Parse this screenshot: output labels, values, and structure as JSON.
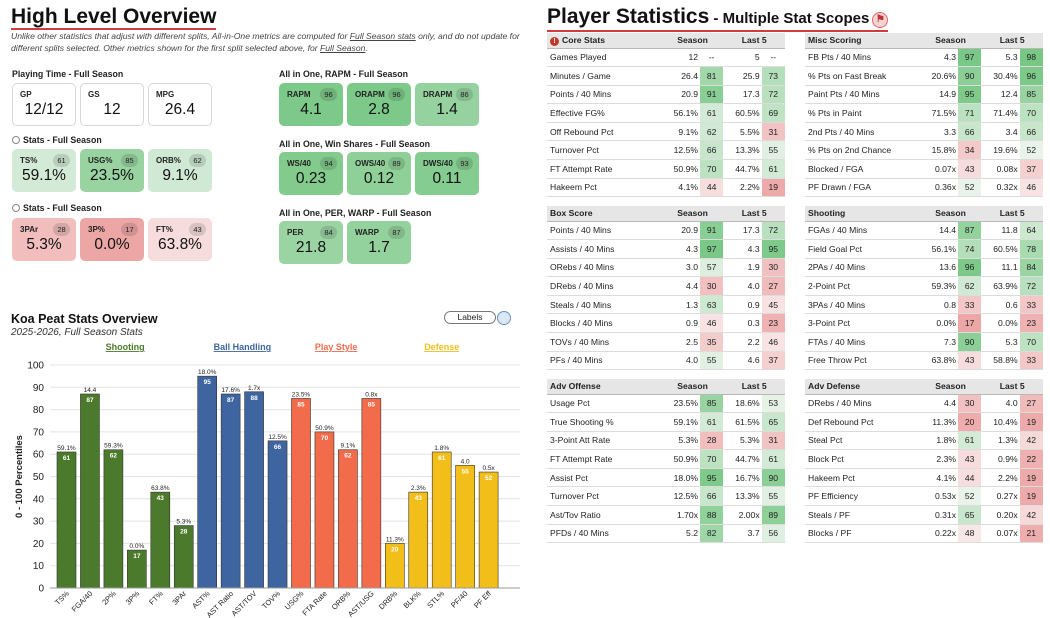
{
  "overview": {
    "title": "High Level Overview",
    "note_pre": "Unlike other statistics that adjust with different splits, All-in-One metrics are computed for ",
    "note_link1": "Full Season stats",
    "note_mid": " only, and do not update for different splits selected. Other metrics shown for the first split selected above, for ",
    "note_link2": "Full Season",
    "note_end": "."
  },
  "colors": {
    "accent_red": "#d23c3c",
    "shooting": "#4c7a2c",
    "ball_handling": "#3e65a0",
    "play_style": "#f26b4b",
    "defense": "#f2bf1a"
  },
  "groups": [
    {
      "label": "Playing Time - Full Season",
      "radio": false,
      "cards": [
        {
          "label": "GP",
          "value": "12/12",
          "pct": null
        },
        {
          "label": "GS",
          "value": "12",
          "pct": null
        },
        {
          "label": "MPG",
          "value": "26.4",
          "pct": null
        }
      ]
    },
    {
      "label": "Stats - Full Season",
      "radio": true,
      "cards": [
        {
          "label": "TS%",
          "value": "59.1%",
          "pct": 61
        },
        {
          "label": "USG%",
          "value": "23.5%",
          "pct": 85
        },
        {
          "label": "ORB%",
          "value": "9.1%",
          "pct": 62
        }
      ]
    },
    {
      "label": "Stats - Full Season",
      "radio": true,
      "cards": [
        {
          "label": "3PAr",
          "value": "5.3%",
          "pct": 28
        },
        {
          "label": "3P%",
          "value": "0.0%",
          "pct": 17
        },
        {
          "label": "FT%",
          "value": "63.8%",
          "pct": 43
        }
      ]
    },
    {
      "label": "All in One, RAPM - Full Season",
      "radio": false,
      "cards": [
        {
          "label": "RAPM",
          "value": "4.1",
          "pct": 96
        },
        {
          "label": "ORAPM",
          "value": "2.8",
          "pct": 96
        },
        {
          "label": "DRAPM",
          "value": "1.4",
          "pct": 86
        }
      ]
    },
    {
      "label": "All in One, Win Shares - Full Season",
      "radio": false,
      "cards": [
        {
          "label": "WS/40",
          "value": "0.23",
          "pct": 94
        },
        {
          "label": "OWS/40",
          "value": "0.12",
          "pct": 89
        },
        {
          "label": "DWS/40",
          "value": "0.11",
          "pct": 93
        }
      ]
    },
    {
      "label": "All in One, PER, WARP - Full Season",
      "radio": false,
      "cards": [
        {
          "label": "PER",
          "value": "21.8",
          "pct": 84
        },
        {
          "label": "WARP",
          "value": "1.7",
          "pct": 87
        }
      ]
    }
  ],
  "chart_data": {
    "type": "bar",
    "title": "Koa Peat Stats Overview",
    "subtitle": "2025-2026, Full Season Stats",
    "labels_button": "Labels",
    "ylabel": "0 - 100 Percentiles",
    "ylim": [
      0,
      100
    ],
    "yticks": [
      0,
      10,
      20,
      30,
      40,
      50,
      60,
      70,
      80,
      90,
      100
    ],
    "group_labels": [
      {
        "name": "Shooting",
        "color": "#4c7a2c",
        "range": [
          0,
          5
        ]
      },
      {
        "name": "Ball Handling",
        "color": "#3e65a0",
        "range": [
          6,
          9
        ]
      },
      {
        "name": "Play Style",
        "color": "#f26b4b",
        "range": [
          10,
          13
        ]
      },
      {
        "name": "Defense",
        "color": "#f2bf1a",
        "range": [
          14,
          18
        ]
      }
    ],
    "categories": [
      "TS%",
      "FGA/40",
      "2P%",
      "3P%",
      "FT%",
      "3PAr",
      "AST%",
      "AST Ratio",
      "AST/TOV",
      "TOV%",
      "USG%",
      "FTA Rate",
      "ORB%",
      "AST/USG",
      "DRB%",
      "BLK%",
      "STL%",
      "PF/40",
      "PF Eff"
    ],
    "values": [
      61,
      87,
      62,
      17,
      43,
      28,
      95,
      87,
      88,
      66,
      85,
      70,
      62,
      85,
      20,
      43,
      61,
      55,
      52
    ],
    "stat_labels": [
      "59.1%",
      "14.4",
      "59.3%",
      "0.0%",
      "63.8%",
      "5.3%",
      "18.0%",
      "17.6%",
      "1.7x",
      "12.5%",
      "23.5%",
      "50.9%",
      "9.1%",
      "0.8x",
      "11.3%",
      "2.3%",
      "1.8%",
      "4.0",
      "0.5x"
    ],
    "groups": [
      "Shooting",
      "Shooting",
      "Shooting",
      "Shooting",
      "Shooting",
      "Shooting",
      "Ball Handling",
      "Ball Handling",
      "Ball Handling",
      "Ball Handling",
      "Play Style",
      "Play Style",
      "Play Style",
      "Play Style",
      "Defense",
      "Defense",
      "Defense",
      "Defense",
      "Defense"
    ]
  },
  "player_stats": {
    "title": "Player Statistics",
    "subtitle": " - Multiple Stat Scopes",
    "tables": [
      {
        "title": "Core Stats",
        "core_icon": true,
        "col1": "Season",
        "col2": "Last 5",
        "rows": [
          [
            "Games Played",
            "12",
            null,
            "5",
            null
          ],
          [
            "Minutes / Game",
            "26.4",
            81,
            "25.9",
            73
          ],
          [
            "Points / 40 Mins",
            "20.9",
            91,
            "17.3",
            72
          ],
          [
            "Effective FG%",
            "56.1%",
            61,
            "60.5%",
            69
          ],
          [
            "Off Rebound Pct",
            "9.1%",
            62,
            "5.5%",
            31
          ],
          [
            "Turnover Pct",
            "12.5%",
            66,
            "13.3%",
            55
          ],
          [
            "FT Attempt Rate",
            "50.9%",
            70,
            "44.7%",
            61
          ],
          [
            "Hakeem Pct",
            "4.1%",
            44,
            "2.2%",
            19
          ]
        ]
      },
      {
        "title": "Misc Scoring",
        "col1": "Season",
        "col2": "Last 5",
        "rows": [
          [
            "FB Pts / 40 Mins",
            "4.3",
            97,
            "5.3",
            98
          ],
          [
            "% Pts on Fast Break",
            "20.6%",
            90,
            "30.4%",
            96
          ],
          [
            "Paint Pts / 40 Mins",
            "14.9",
            95,
            "12.4",
            85
          ],
          [
            "% Pts in Paint",
            "71.5%",
            71,
            "71.4%",
            70
          ],
          [
            "2nd Pts / 40 Mins",
            "3.3",
            66,
            "3.4",
            66
          ],
          [
            "% Pts on 2nd Chance",
            "15.8%",
            34,
            "19.6%",
            52
          ],
          [
            "Blocked / FGA",
            "0.07x",
            43,
            "0.08x",
            37
          ],
          [
            "PF Drawn / FGA",
            "0.36x",
            52,
            "0.32x",
            46
          ]
        ]
      },
      {
        "title": "Box Score",
        "col1": "Season",
        "col2": "Last 5",
        "rows": [
          [
            "Points / 40 Mins",
            "20.9",
            91,
            "17.3",
            72
          ],
          [
            "Assists / 40 Mins",
            "4.3",
            97,
            "4.3",
            95
          ],
          [
            "ORebs / 40 Mins",
            "3.0",
            57,
            "1.9",
            30
          ],
          [
            "DRebs / 40 Mins",
            "4.4",
            30,
            "4.0",
            27
          ],
          [
            "Steals / 40 Mins",
            "1.3",
            63,
            "0.9",
            45
          ],
          [
            "Blocks / 40 Mins",
            "0.9",
            46,
            "0.3",
            23
          ],
          [
            "TOVs / 40 Mins",
            "2.5",
            35,
            "2.2",
            46
          ],
          [
            "PFs / 40 Mins",
            "4.0",
            55,
            "4.6",
            37
          ]
        ]
      },
      {
        "title": "Shooting",
        "col1": "Season",
        "col2": "Last 5",
        "rows": [
          [
            "FGAs / 40 Mins",
            "14.4",
            87,
            "11.8",
            64
          ],
          [
            "Field Goal Pct",
            "56.1%",
            74,
            "60.5%",
            78
          ],
          [
            "2PAs / 40 Mins",
            "13.6",
            96,
            "11.1",
            84
          ],
          [
            "2-Point Pct",
            "59.3%",
            62,
            "63.9%",
            72
          ],
          [
            "3PAs / 40 Mins",
            "0.8",
            33,
            "0.6",
            33
          ],
          [
            "3-Point Pct",
            "0.0%",
            17,
            "0.0%",
            23
          ],
          [
            "FTAs / 40 Mins",
            "7.3",
            90,
            "5.3",
            70
          ],
          [
            "Free Throw Pct",
            "63.8%",
            43,
            "58.8%",
            33
          ]
        ]
      },
      {
        "title": "Adv Offense",
        "col1": "Season",
        "col2": "Last 5",
        "rows": [
          [
            "Usage Pct",
            "23.5%",
            85,
            "18.6%",
            53
          ],
          [
            "True Shooting %",
            "59.1%",
            61,
            "61.5%",
            65
          ],
          [
            "3-Point Att Rate",
            "5.3%",
            28,
            "5.3%",
            31
          ],
          [
            "FT Attempt Rate",
            "50.9%",
            70,
            "44.7%",
            61
          ],
          [
            "Assist Pct",
            "18.0%",
            95,
            "16.7%",
            90
          ],
          [
            "Turnover Pct",
            "12.5%",
            66,
            "13.3%",
            55
          ],
          [
            "Ast/Tov Ratio",
            "1.70x",
            88,
            "2.00x",
            89
          ],
          [
            "PFDs / 40 Mins",
            "5.2",
            82,
            "3.7",
            56
          ]
        ]
      },
      {
        "title": "Adv Defense",
        "col1": "Season",
        "col2": "Last 5",
        "rows": [
          [
            "DRebs / 40 Mins",
            "4.4",
            30,
            "4.0",
            27
          ],
          [
            "Def Rebound Pct",
            "11.3%",
            20,
            "10.4%",
            19
          ],
          [
            "Steal Pct",
            "1.8%",
            61,
            "1.3%",
            42
          ],
          [
            "Block Pct",
            "2.3%",
            43,
            "0.9%",
            22
          ],
          [
            "Hakeem Pct",
            "4.1%",
            44,
            "2.2%",
            19
          ],
          [
            "PF Efficiency",
            "0.53x",
            52,
            "0.27x",
            19
          ],
          [
            "Steals / PF",
            "0.31x",
            65,
            "0.20x",
            42
          ],
          [
            "Blocks / PF",
            "0.22x",
            48,
            "0.07x",
            21
          ]
        ]
      }
    ]
  }
}
